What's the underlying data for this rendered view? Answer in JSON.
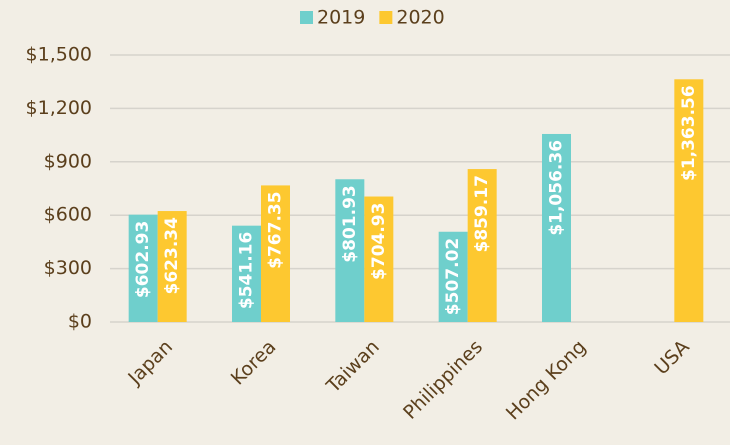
{
  "chart_data": {
    "type": "bar",
    "categories": [
      "Japan",
      "Korea",
      "Taiwan",
      "Philippines",
      "Hong Kong",
      "USA"
    ],
    "series": [
      {
        "name": "2019",
        "color": "#6fcfcc",
        "values": [
          602.93,
          541.16,
          801.93,
          507.02,
          1056.36,
          null
        ],
        "value_labels": [
          "$602.93",
          "$541.16",
          "$801.93",
          "$507.02",
          "$1,056.36",
          null
        ]
      },
      {
        "name": "2020",
        "color": "#fdc830",
        "values": [
          623.34,
          767.35,
          704.93,
          859.17,
          null,
          1363.56
        ],
        "value_labels": [
          "$623.34",
          "$767.35",
          "$704.93",
          "$859.17",
          null,
          "$1,363.56"
        ]
      }
    ],
    "ylim": [
      0,
      1500
    ],
    "yticks": [
      {
        "value": 0,
        "label": "$0"
      },
      {
        "value": 300,
        "label": "$300"
      },
      {
        "value": 600,
        "label": "$600"
      },
      {
        "value": 900,
        "label": "$900"
      },
      {
        "value": 1200,
        "label": "$1,200"
      },
      {
        "value": 1500,
        "label": "$1,500"
      }
    ],
    "grid": true,
    "legend": "top"
  }
}
